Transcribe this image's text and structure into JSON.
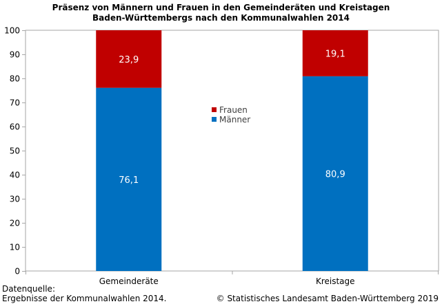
{
  "chart_data": {
    "type": "bar",
    "stacked": true,
    "title_line1": "Präsenz von Männern und Frauen in den Gemeinderäten und Kreistagen",
    "title_line2": "Baden-Württembergs nach den Kommunalwahlen 2014",
    "categories": [
      "Gemeinderäte",
      "Kreistage"
    ],
    "series": [
      {
        "name": "Männer",
        "color": "#0070C0",
        "values": [
          76.1,
          80.9
        ],
        "labels": [
          "76,1",
          "80,9"
        ]
      },
      {
        "name": "Frauen",
        "color": "#C00000",
        "values": [
          23.9,
          19.1
        ],
        "labels": [
          "23,9",
          "19,1"
        ]
      }
    ],
    "legend": [
      {
        "name": "Frauen",
        "color": "#C00000"
      },
      {
        "name": "Männer",
        "color": "#0070C0"
      }
    ],
    "ylim": [
      0,
      100
    ],
    "yticks": [
      0,
      10,
      20,
      30,
      40,
      50,
      60,
      70,
      80,
      90,
      100
    ],
    "legend_position": "center"
  },
  "footer": {
    "source_label": "Datenquelle:",
    "source_text": "Ergebnisse der Kommunalwahlen 2014.",
    "copyright": "© Statistisches Landesamt Baden-Württemberg 2019"
  }
}
